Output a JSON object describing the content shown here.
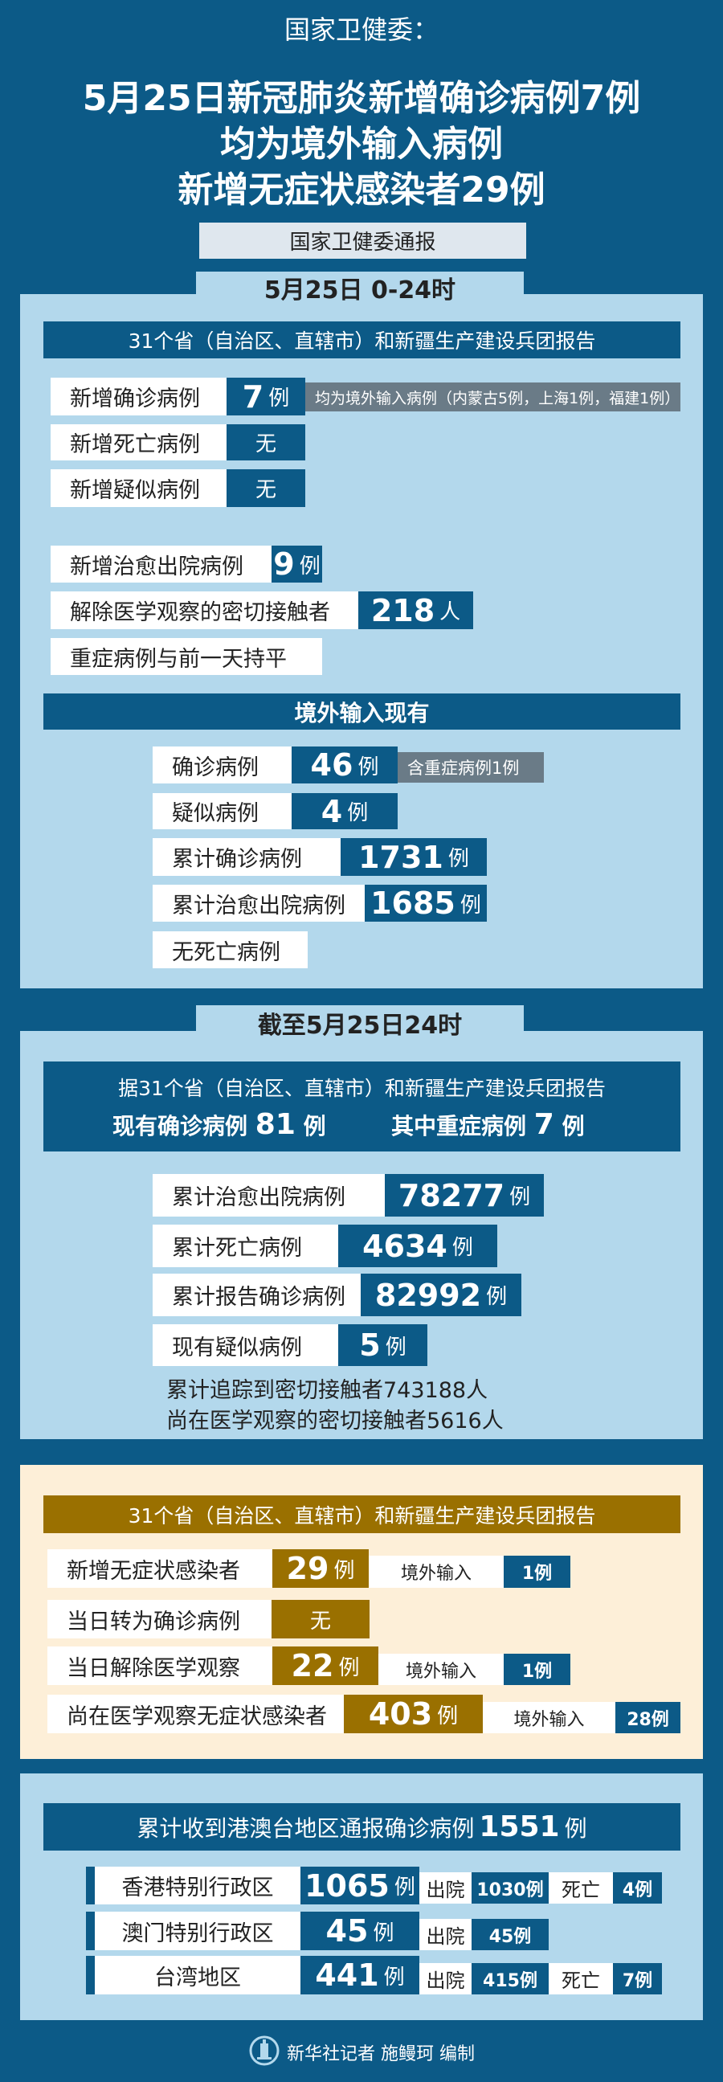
{
  "title": {
    "line1": "国家卫健委：",
    "line2": "5月25日新冠肺炎新增确诊病例7例",
    "line3": "均为境外输入病例",
    "line4": "新增无症状感染者29例"
  },
  "source_box": "国家卫健委通报",
  "colors": {
    "dark_blue": "#0c5a87",
    "light_blue": "#b3d8ec",
    "gold": "#9a7000",
    "cream": "#fdefd8",
    "gray": "#6a7b87"
  },
  "daily": {
    "tab": "5月25日 0-24时",
    "header": "31个省（自治区、直辖市）和新疆生产建设兵团报告",
    "rows": [
      {
        "label": "新增确诊病例",
        "value": "7",
        "unit": "例",
        "note": "均为境外输入病例（内蒙古5例，上海1例，福建1例）"
      },
      {
        "label": "新增死亡病例",
        "value": "无"
      },
      {
        "label": "新增疑似病例",
        "value": "无"
      },
      {
        "label": "新增治愈出院病例",
        "value": "9",
        "unit": "例"
      },
      {
        "label": "解除医学观察的密切接触者",
        "value": "218",
        "unit": "人"
      },
      {
        "label": "重症病例与前一天持平"
      }
    ],
    "imported_header": "境外输入现有",
    "imported": [
      {
        "label": "确诊病例",
        "value": "46",
        "unit": "例",
        "note": "含重症病例1例"
      },
      {
        "label": "疑似病例",
        "value": "4",
        "unit": "例"
      },
      {
        "label": "累计确诊病例",
        "value": "1731",
        "unit": "例"
      },
      {
        "label": "累计治愈出院病例",
        "value": "1685",
        "unit": "例"
      },
      {
        "label": "无死亡病例"
      }
    ]
  },
  "cumulative": {
    "tab": "截至5月25日24时",
    "header": "据31个省（自治区、直辖市）和新疆生产建设兵团报告",
    "current_label": "现有确诊病例",
    "current_value": "81",
    "current_unit": "例",
    "severe_label": "其中重症病例",
    "severe_value": "7",
    "severe_unit": "例",
    "rows": [
      {
        "label": "累计治愈出院病例",
        "value": "78277",
        "unit": "例"
      },
      {
        "label": "累计死亡病例",
        "value": "4634",
        "unit": "例"
      },
      {
        "label": "累计报告确诊病例",
        "value": "82992",
        "unit": "例"
      },
      {
        "label": "现有疑似病例",
        "value": "5",
        "unit": "例"
      }
    ],
    "line1": "累计追踪到密切接触者743188人",
    "line2": "尚在医学观察的密切接触者5616人"
  },
  "asymptomatic": {
    "header": "31个省（自治区、直辖市）和新疆生产建设兵团报告",
    "rows": [
      {
        "label": "新增无症状感染者",
        "value": "29",
        "unit": "例",
        "sub_label": "境外输入",
        "sub_value": "1例"
      },
      {
        "label": "当日转为确诊病例",
        "value": "无"
      },
      {
        "label": "当日解除医学观察",
        "value": "22",
        "unit": "例",
        "sub_label": "境外输入",
        "sub_value": "1例"
      },
      {
        "label": "尚在医学观察无症状感染者",
        "value": "403",
        "unit": "例",
        "sub_label": "境外输入",
        "sub_value": "28例"
      }
    ]
  },
  "hmt": {
    "header_text": "累计收到港澳台地区通报确诊病例",
    "header_value": "1551",
    "header_unit": "例",
    "rows": [
      {
        "label": "香港特别行政区",
        "value": "1065",
        "unit": "例",
        "discharged_label": "出院",
        "discharged": "1030例",
        "death_label": "死亡",
        "death": "4例"
      },
      {
        "label": "澳门特别行政区",
        "value": "45",
        "unit": "例",
        "discharged_label": "出院",
        "discharged": "45例"
      },
      {
        "label": "台湾地区",
        "value": "441",
        "unit": "例",
        "discharged_label": "出院",
        "discharged": "415例",
        "death_label": "死亡",
        "death": "7例"
      }
    ]
  },
  "footer": {
    "credit": "新华社记者 施鳗珂 编制",
    "logo_text": "XINHUA"
  }
}
